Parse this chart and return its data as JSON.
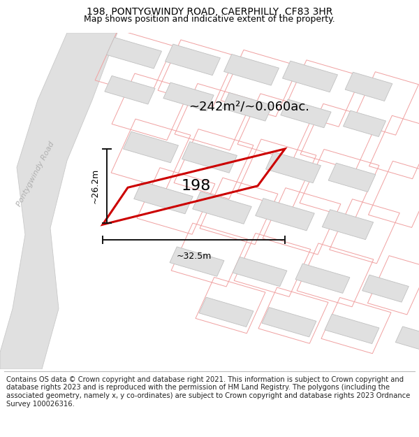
{
  "title": "198, PONTYGWINDY ROAD, CAERPHILLY, CF83 3HR",
  "subtitle": "Map shows position and indicative extent of the property.",
  "footer": "Contains OS data © Crown copyright and database right 2021. This information is subject to Crown copyright and database rights 2023 and is reproduced with the permission of HM Land Registry. The polygons (including the associated geometry, namely x, y co-ordinates) are subject to Crown copyright and database rights 2023 Ordnance Survey 100026316.",
  "area_label": "~242m²/~0.060ac.",
  "width_label": "~32.5m",
  "height_label": "~26.2m",
  "property_number": "198",
  "background_color": "#ffffff",
  "property_outline_color": "#cc0000",
  "road_label_color": "#aaaaaa",
  "dim_line_color": "#111111",
  "title_fontsize": 10,
  "subtitle_fontsize": 9,
  "footer_fontsize": 7.2,
  "area_label_fontsize": 13,
  "property_number_fontsize": 16,
  "road_label_fontsize": 8,
  "dim_label_fontsize": 9
}
